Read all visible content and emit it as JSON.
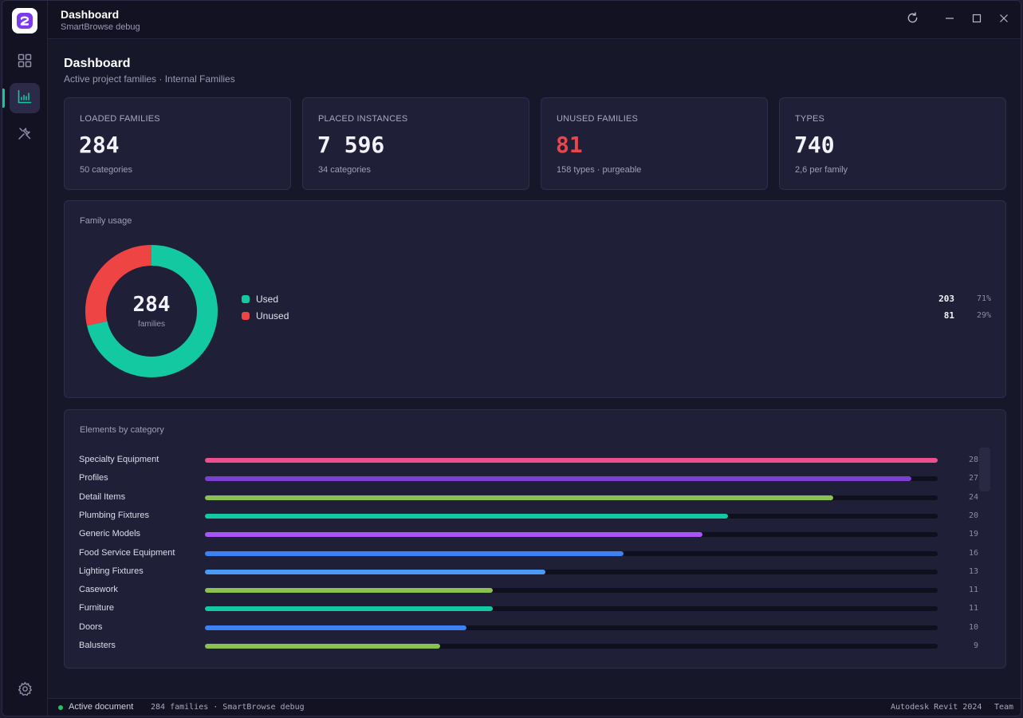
{
  "app": {
    "title": "Dashboard",
    "subtitle": "SmartBrowse debug"
  },
  "page": {
    "title": "Dashboard",
    "subtitle": "Active project families · Internal Families"
  },
  "stats": [
    {
      "label": "LOADED FAMILIES",
      "value": "284",
      "sub": "50 categories"
    },
    {
      "label": "PLACED INSTANCES",
      "value": "7 596",
      "sub": "34 categories"
    },
    {
      "label": "UNUSED FAMILIES",
      "value": "81",
      "sub": "158 types · purgeable"
    },
    {
      "label": "TYPES",
      "value": "740",
      "sub": "2,6 per family"
    }
  ],
  "usage": {
    "title": "Family usage",
    "center_value": "284",
    "center_label": "families",
    "items": [
      {
        "label": "Used",
        "count": "203",
        "pct": "71%",
        "value": 203,
        "color": "#12c9a2"
      },
      {
        "label": "Unused",
        "count": "81",
        "pct": "29%",
        "value": 81,
        "color": "#ef4444"
      }
    ]
  },
  "categories": {
    "title": "Elements by category",
    "max": 28,
    "items": [
      {
        "label": "Specialty Equipment",
        "count": "28",
        "value": 28,
        "color": "#ec4f8c"
      },
      {
        "label": "Profiles",
        "count": "27",
        "value": 27,
        "color": "#7b3fd1"
      },
      {
        "label": "Detail Items",
        "count": "24",
        "value": 24,
        "color": "#8cc152"
      },
      {
        "label": "Plumbing Fixtures",
        "count": "20",
        "value": 20,
        "color": "#12c9a2"
      },
      {
        "label": "Generic Models",
        "count": "19",
        "value": 19,
        "color": "#a855f7"
      },
      {
        "label": "Food Service Equipment",
        "count": "16",
        "value": 16,
        "color": "#3b82f6"
      },
      {
        "label": "Lighting Fixtures",
        "count": "13",
        "value": 13,
        "color": "#4a9bf5"
      },
      {
        "label": "Casework",
        "count": "11",
        "value": 11,
        "color": "#8cc152"
      },
      {
        "label": "Furniture",
        "count": "11",
        "value": 11,
        "color": "#12c9a2"
      },
      {
        "label": "Doors",
        "count": "10",
        "value": 10,
        "color": "#3b82f6"
      },
      {
        "label": "Balusters",
        "count": "9",
        "value": 9,
        "color": "#8cc152"
      }
    ]
  },
  "status": {
    "active": "Active document",
    "info": "284 families · SmartBrowse debug",
    "product": "Autodesk Revit 2024",
    "team": "Team"
  },
  "icons": {
    "logo": "app-logo-icon",
    "nav": [
      "grid-icon",
      "chart-icon",
      "tools-icon"
    ],
    "settings": "gear-icon",
    "refresh": "refresh-icon",
    "minimize": "minimize-icon",
    "maximize": "maximize-icon",
    "close": "close-icon"
  }
}
